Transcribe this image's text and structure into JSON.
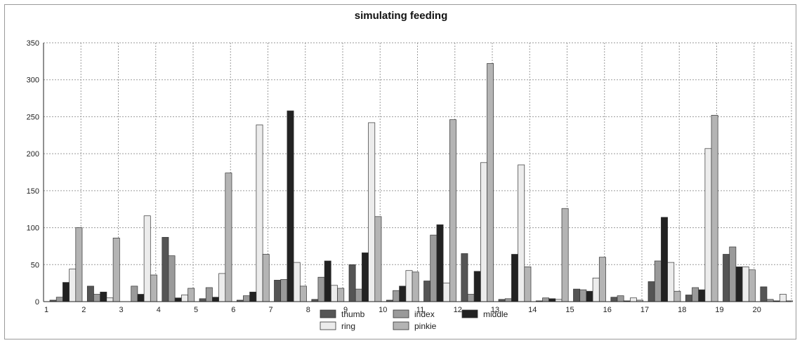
{
  "chart_data": {
    "type": "bar",
    "title": "simulating feeding",
    "xlabel": "",
    "ylabel": "",
    "ylim": [
      0,
      350
    ],
    "yticks": [
      0,
      50,
      100,
      150,
      200,
      250,
      300,
      350
    ],
    "categories": [
      "1",
      "2",
      "3",
      "4",
      "5",
      "6",
      "7",
      "8",
      "9",
      "10",
      "11",
      "12",
      "13",
      "14",
      "15",
      "16",
      "17",
      "18",
      "19",
      "20"
    ],
    "grid": true,
    "legend_position": "bottom-center",
    "series": [
      {
        "name": "thumb",
        "color": "#555555",
        "values": [
          2,
          21,
          0,
          87,
          4,
          2,
          29,
          3,
          50,
          2,
          28,
          65,
          3,
          1,
          17,
          6,
          27,
          9,
          64,
          20
        ]
      },
      {
        "name": "index",
        "color": "#9a9a9a",
        "values": [
          6,
          10,
          21,
          62,
          19,
          8,
          30,
          33,
          17,
          15,
          90,
          10,
          4,
          5,
          16,
          8,
          55,
          19,
          74,
          3
        ]
      },
      {
        "name": "middle",
        "color": "#222222",
        "values": [
          26,
          13,
          10,
          5,
          6,
          13,
          258,
          55,
          66,
          21,
          104,
          41,
          64,
          4,
          14,
          1,
          114,
          16,
          47,
          1
        ]
      },
      {
        "name": "ring",
        "color": "#ececec",
        "values": [
          44,
          5,
          116,
          9,
          38,
          239,
          53,
          22,
          242,
          42,
          25,
          188,
          185,
          3,
          32,
          5,
          53,
          207,
          47,
          10
        ]
      },
      {
        "name": "pinkie",
        "color": "#b4b4b4",
        "values": [
          100,
          86,
          36,
          18,
          174,
          64,
          21,
          18,
          115,
          40,
          246,
          322,
          47,
          126,
          60,
          2,
          14,
          252,
          43,
          1
        ]
      }
    ]
  }
}
